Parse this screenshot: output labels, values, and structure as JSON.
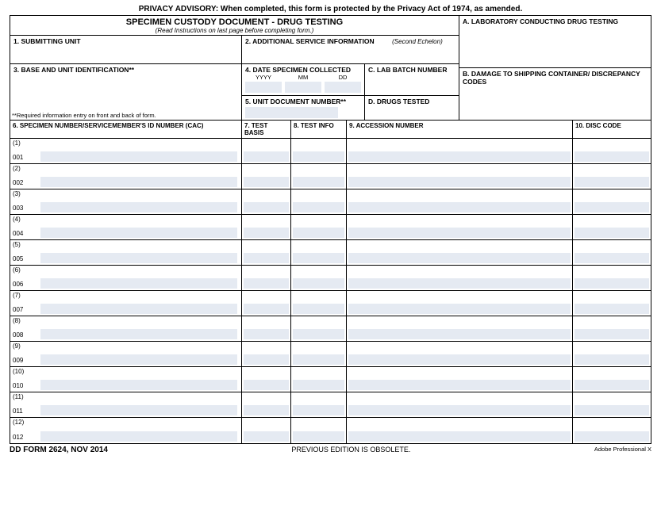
{
  "advisory": "PRIVACY ADVISORY:  When completed, this form is protected by the Privacy Act of 1974, as amended.",
  "title": {
    "main": "SPECIMEN CUSTODY DOCUMENT - DRUG TESTING",
    "sub": "(Read Instructions on last page before completing form.)"
  },
  "sections": {
    "a": "A.  LABORATORY CONDUCTING DRUG TESTING",
    "b": "B.  DAMAGE TO SHIPPING CONTAINER/ DISCREPANCY CODES",
    "s1": "1.  SUBMITTING UNIT",
    "s2": "2.  ADDITIONAL SERVICE INFORMATION",
    "s2_hint": "(Second Echelon)",
    "s3": "3.  BASE AND UNIT IDENTIFICATION**",
    "s3_foot": "**Required information entry on front and back of form.",
    "s4": "4.  DATE SPECIMEN COLLECTED",
    "s4_y": "YYYY",
    "s4_m": "MM",
    "s4_d": "DD",
    "s5": "5.  UNIT DOCUMENT NUMBER**",
    "c": "C.  LAB BATCH NUMBER",
    "d": "D.  DRUGS TESTED"
  },
  "columns": {
    "c6": "6.  SPECIMEN NUMBER/SERVICEMEMBER'S ID NUMBER (CAC)",
    "c7": "7.  TEST BASIS",
    "c8": "8.  TEST INFO",
    "c9": "9.  ACCESSION NUMBER",
    "c10": "10.  DISC CODE"
  },
  "rows": [
    {
      "n": "(1)",
      "b": "001"
    },
    {
      "n": "(2)",
      "b": "002"
    },
    {
      "n": "(3)",
      "b": "003"
    },
    {
      "n": "(4)",
      "b": "004"
    },
    {
      "n": "(5)",
      "b": "005"
    },
    {
      "n": "(6)",
      "b": "006"
    },
    {
      "n": "(7)",
      "b": "007"
    },
    {
      "n": "(8)",
      "b": "008"
    },
    {
      "n": "(9)",
      "b": "009"
    },
    {
      "n": "(10)",
      "b": "010"
    },
    {
      "n": "(11)",
      "b": "011"
    },
    {
      "n": "(12)",
      "b": "012"
    }
  ],
  "footer": {
    "left": "DD FORM 2624, NOV 2014",
    "center": "PREVIOUS EDITION IS OBSOLETE.",
    "right": "Adobe Professional X"
  },
  "colors": {
    "fill": "#e5eaf2",
    "border": "#000000"
  }
}
